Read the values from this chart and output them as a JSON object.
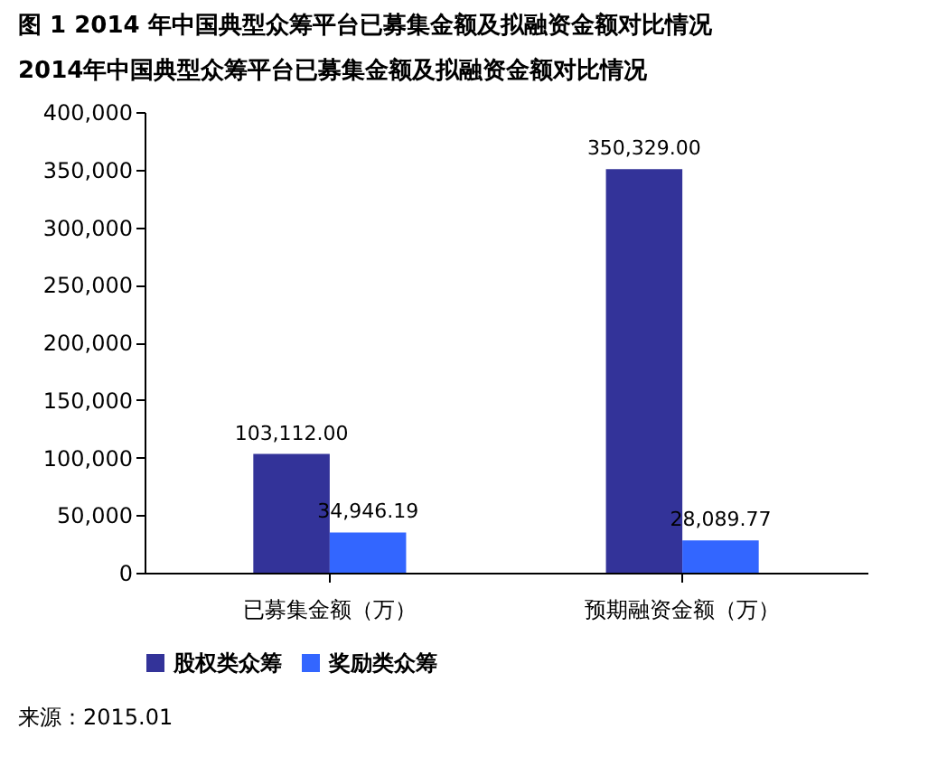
{
  "chart_data": {
    "type": "bar",
    "title": "图 1 2014 年中国典型众筹平台已募集金额及拟融资金额对比情况",
    "subtitle": "2014年中国典型众筹平台已募集金额及拟融资金额对比情况",
    "categories": [
      "已募集金额（万）",
      "预期融资金额（万）"
    ],
    "series": [
      {
        "name": "股权类众筹",
        "color": "#333399",
        "values": [
          103112.0,
          350329.0
        ],
        "value_labels": [
          "103,112.00",
          "350,329.00"
        ]
      },
      {
        "name": "奖励类众筹",
        "color": "#3366ff",
        "values": [
          34946.19,
          28089.77
        ],
        "value_labels": [
          "34,946.19",
          "28,089.77"
        ]
      }
    ],
    "ylim": [
      0,
      400000
    ],
    "yticks": [
      0,
      {
        "value": 50000,
        "label": "50,000"
      },
      {
        "value": 100000,
        "label": "100,000"
      },
      {
        "value": 150000,
        "label": "150,000"
      },
      {
        "value": 200000,
        "label": "200,000"
      },
      {
        "value": 250000,
        "label": "250,000"
      },
      {
        "value": 300000,
        "label": "300,000"
      },
      {
        "value": 350000,
        "label": "350,000"
      },
      {
        "value": 400000,
        "label": "400,000"
      }
    ],
    "grid": false,
    "legend": "bottom",
    "annotations": [
      "来源：2015.01"
    ]
  }
}
